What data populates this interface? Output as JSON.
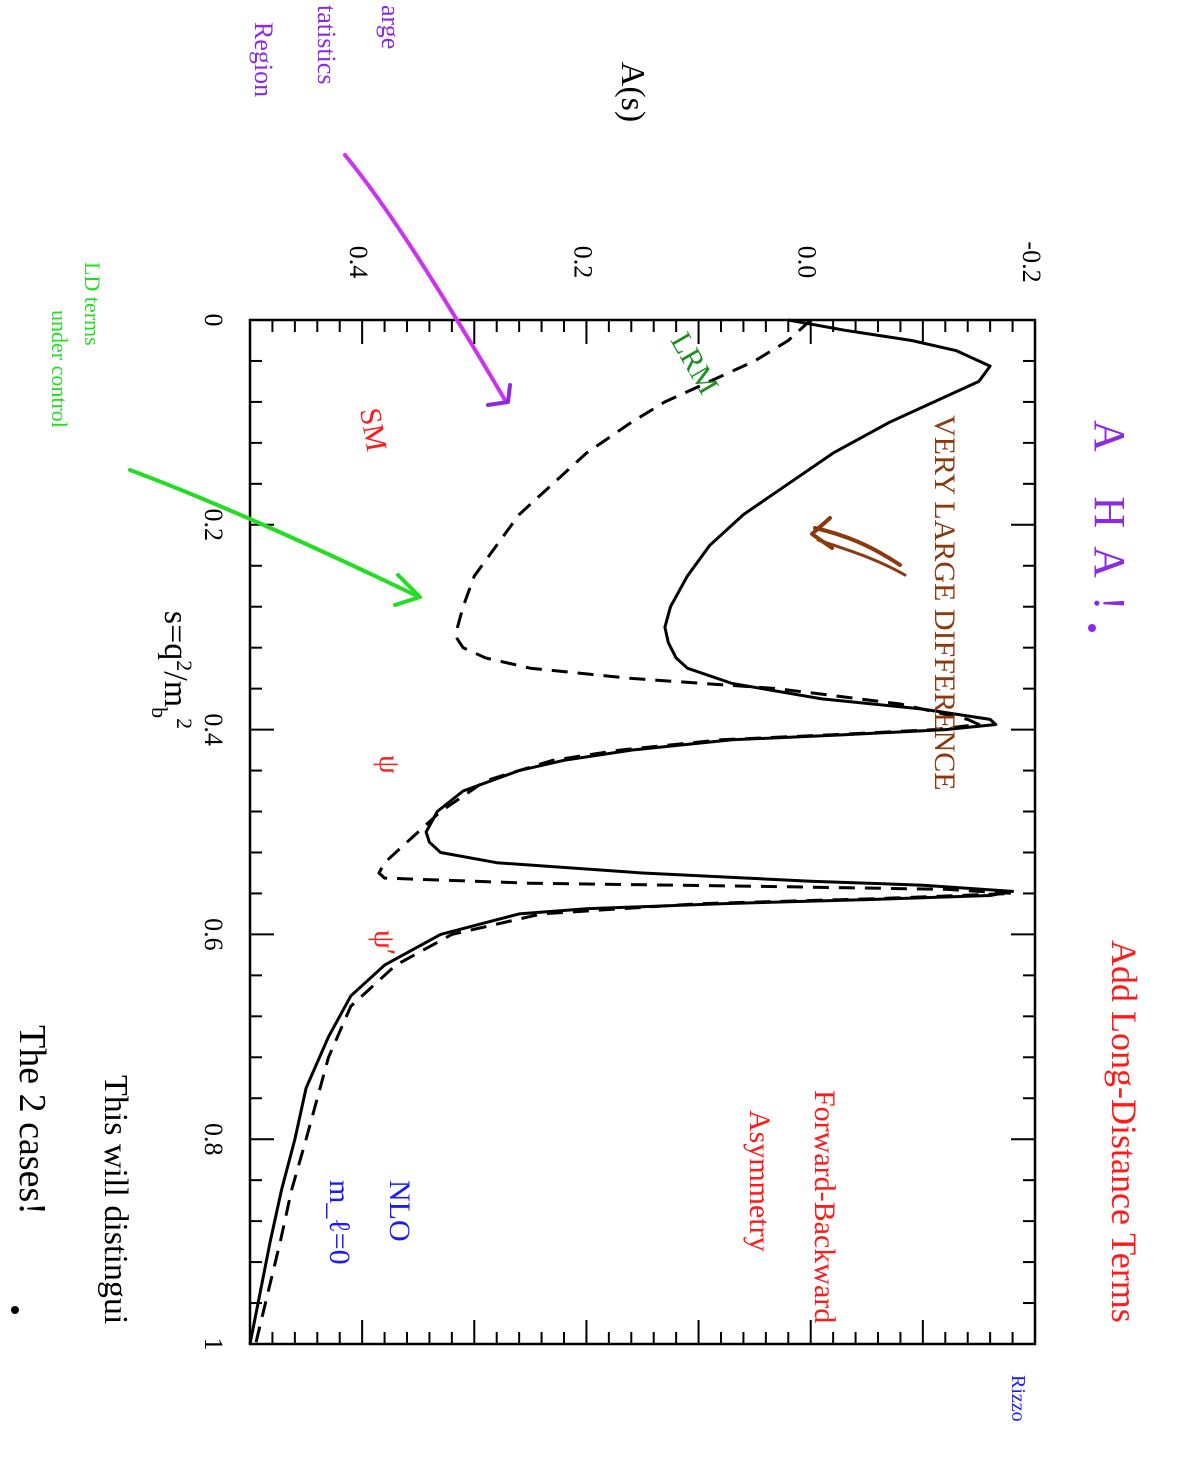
{
  "chart_data": {
    "type": "line",
    "title": "",
    "xlabel": "s=q^2/m_b^2",
    "ylabel": "A(s)",
    "xlim": [
      0,
      1
    ],
    "ylim": [
      -0.2,
      0.5
    ],
    "xticks": [
      "0",
      "0.2",
      "0.4",
      "0.6",
      "0.8",
      "1"
    ],
    "yticks": [
      "-0.2",
      "0.0",
      "0.2",
      "0.4"
    ],
    "orientation": "rotated 90 degrees clockwise (s axis runs top to bottom, A(s) axis runs right to left)",
    "series": [
      {
        "name": "SM",
        "style": "solid",
        "color": "#000000",
        "points": [
          [
            0,
            0.02
          ],
          [
            0.01,
            -0.03
          ],
          [
            0.02,
            -0.09
          ],
          [
            0.03,
            -0.13
          ],
          [
            0.045,
            -0.16
          ],
          [
            0.06,
            -0.15
          ],
          [
            0.08,
            -0.11
          ],
          [
            0.1,
            -0.07
          ],
          [
            0.13,
            -0.02
          ],
          [
            0.16,
            0.02
          ],
          [
            0.19,
            0.06
          ],
          [
            0.22,
            0.09
          ],
          [
            0.25,
            0.11
          ],
          [
            0.28,
            0.125
          ],
          [
            0.3,
            0.13
          ],
          [
            0.315,
            0.127
          ],
          [
            0.33,
            0.12
          ],
          [
            0.34,
            0.11
          ],
          [
            0.355,
            0.07
          ],
          [
            0.37,
            -0.01
          ],
          [
            0.38,
            -0.1
          ],
          [
            0.39,
            -0.16
          ],
          [
            0.395,
            -0.165
          ],
          [
            0.4,
            -0.12
          ],
          [
            0.405,
            -0.03
          ],
          [
            0.41,
            0.07
          ],
          [
            0.42,
            0.16
          ],
          [
            0.43,
            0.22
          ],
          [
            0.44,
            0.26
          ],
          [
            0.46,
            0.31
          ],
          [
            0.48,
            0.333
          ],
          [
            0.5,
            0.343
          ],
          [
            0.51,
            0.34
          ],
          [
            0.52,
            0.33
          ],
          [
            0.53,
            0.28
          ],
          [
            0.54,
            0.15
          ],
          [
            0.548,
            0.0
          ],
          [
            0.552,
            -0.1
          ],
          [
            0.558,
            -0.18
          ],
          [
            0.562,
            -0.16
          ],
          [
            0.566,
            -0.05
          ],
          [
            0.57,
            0.08
          ],
          [
            0.575,
            0.2
          ],
          [
            0.58,
            0.26
          ],
          [
            0.6,
            0.33
          ],
          [
            0.63,
            0.38
          ],
          [
            0.66,
            0.41
          ],
          [
            0.7,
            0.43
          ],
          [
            0.75,
            0.45
          ],
          [
            0.8,
            0.46
          ],
          [
            0.85,
            0.472
          ],
          [
            0.9,
            0.482
          ],
          [
            0.95,
            0.491
          ],
          [
            1.0,
            0.5
          ]
        ]
      },
      {
        "name": "LRM",
        "style": "dashed",
        "color": "#000000",
        "points": [
          [
            0,
            0.0
          ],
          [
            0.02,
            0.02
          ],
          [
            0.04,
            0.05
          ],
          [
            0.06,
            0.09
          ],
          [
            0.08,
            0.13
          ],
          [
            0.1,
            0.16
          ],
          [
            0.13,
            0.2
          ],
          [
            0.16,
            0.23
          ],
          [
            0.19,
            0.26
          ],
          [
            0.22,
            0.28
          ],
          [
            0.25,
            0.3
          ],
          [
            0.28,
            0.31
          ],
          [
            0.3,
            0.315
          ],
          [
            0.31,
            0.316
          ],
          [
            0.32,
            0.31
          ],
          [
            0.33,
            0.29
          ],
          [
            0.34,
            0.25
          ],
          [
            0.35,
            0.16
          ],
          [
            0.36,
            0.03
          ],
          [
            0.375,
            -0.08
          ],
          [
            0.39,
            -0.14
          ],
          [
            0.395,
            -0.15
          ],
          [
            0.4,
            -0.11
          ],
          [
            0.405,
            -0.02
          ],
          [
            0.41,
            0.08
          ],
          [
            0.42,
            0.17
          ],
          [
            0.43,
            0.23
          ],
          [
            0.45,
            0.29
          ],
          [
            0.48,
            0.33
          ],
          [
            0.51,
            0.36
          ],
          [
            0.53,
            0.38
          ],
          [
            0.54,
            0.385
          ],
          [
            0.545,
            0.38
          ],
          [
            0.55,
            0.25
          ],
          [
            0.553,
            0.05
          ],
          [
            0.556,
            -0.12
          ],
          [
            0.56,
            -0.18
          ],
          [
            0.565,
            -0.06
          ],
          [
            0.57,
            0.1
          ],
          [
            0.58,
            0.24
          ],
          [
            0.6,
            0.32
          ],
          [
            0.63,
            0.37
          ],
          [
            0.67,
            0.41
          ],
          [
            0.72,
            0.43
          ],
          [
            0.8,
            0.45
          ],
          [
            0.85,
            0.463
          ],
          [
            0.9,
            0.473
          ],
          [
            0.95,
            0.484
          ],
          [
            1.0,
            0.495
          ]
        ]
      }
    ],
    "annotations": [
      "A HA!",
      "Add Long-Distance Terms",
      "Rizzo",
      "Forward-Backward",
      "Asymmetry",
      "NLO",
      "m_ℓ=0",
      "This will distingui",
      "The 2 cases!",
      "VERY LARGE DIFFERENCE",
      "LRM",
      "SM",
      "ψ",
      "ψ′",
      "LD terms",
      "under control",
      "arge",
      "tatistics",
      "Region"
    ],
    "grid": false,
    "legend": "none"
  },
  "colors": {
    "purple": "#8a2be2",
    "magenta": "#cc33ee",
    "red": "#ff1a1a",
    "green": "#1f8f1f",
    "light_green": "#22dd22",
    "brown": "#8b3a10",
    "blue": "#1a1aff"
  }
}
